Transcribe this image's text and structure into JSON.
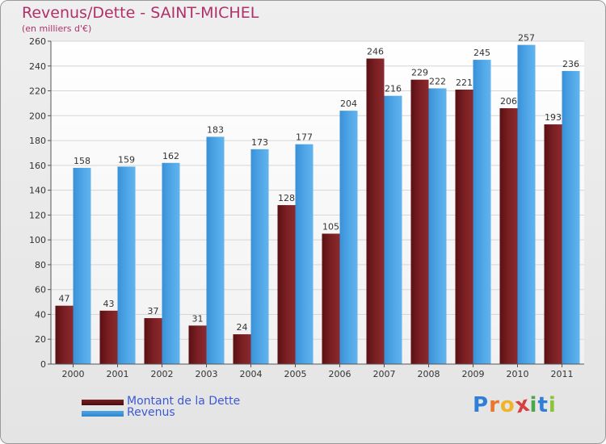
{
  "title": "Revenus/Dette - SAINT-MICHEL",
  "subtitle": "(en milliers d'€)",
  "colors": {
    "debt": "#7a1f22",
    "revenue": "#4ea5e6",
    "title": "#b0306a",
    "legend_text": "#3b59d6"
  },
  "legend": [
    {
      "label": "Montant de la Dette"
    },
    {
      "label": "Revenus"
    }
  ],
  "logo": {
    "letters": [
      "P",
      "r",
      "o",
      "x",
      "i",
      "t",
      "i"
    ],
    "colors": [
      "#2f7fd8",
      "#e8782c",
      "#f0b428",
      "#d84040",
      "#4aa84a",
      "#2f7fd8",
      "#8ac43a"
    ]
  },
  "chart_data": {
    "type": "bar",
    "categories": [
      "2000",
      "2001",
      "2002",
      "2003",
      "2004",
      "2005",
      "2006",
      "2007",
      "2008",
      "2009",
      "2010",
      "2011"
    ],
    "series": [
      {
        "name": "Montant de la Dette",
        "values": [
          47,
          43,
          37,
          31,
          24,
          128,
          105,
          246,
          229,
          221,
          206,
          193
        ]
      },
      {
        "name": "Revenus",
        "values": [
          158,
          159,
          162,
          183,
          173,
          177,
          204,
          216,
          222,
          245,
          257,
          236
        ]
      }
    ],
    "ylim": [
      0,
      260
    ],
    "yticks": [
      0,
      20,
      40,
      60,
      80,
      100,
      120,
      140,
      160,
      180,
      200,
      220,
      240,
      260
    ],
    "grid": true,
    "legend_position": "bottom-left"
  }
}
